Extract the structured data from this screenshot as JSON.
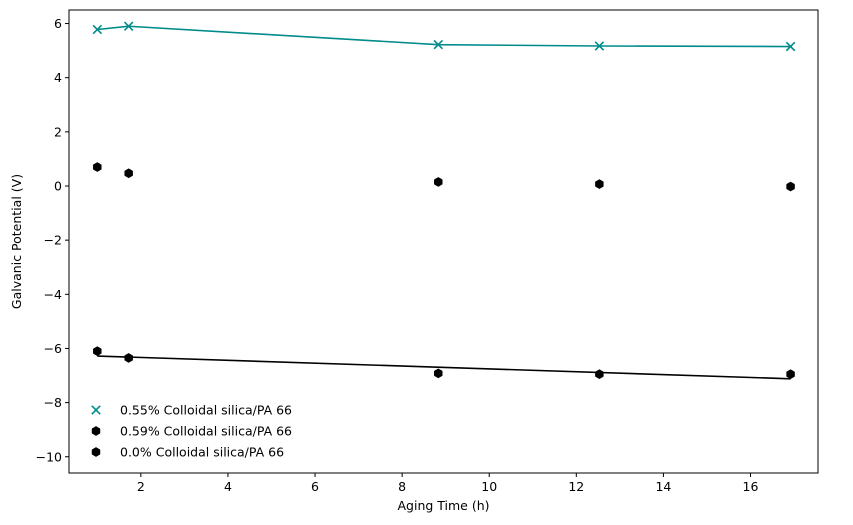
{
  "chart_data": {
    "type": "scatter",
    "xlabel": "Aging Time (h)",
    "ylabel": "Galvanic Potential (V)",
    "xlim": [
      0.35,
      17.55
    ],
    "ylim": [
      -10.6,
      6.5
    ],
    "xticks": [
      2,
      4,
      6,
      8,
      10,
      12,
      14,
      16
    ],
    "yticks": [
      -10,
      -8,
      -6,
      -4,
      -2,
      0,
      2,
      4,
      6
    ],
    "xtick_labels": [
      "2",
      "4",
      "6",
      "8",
      "10",
      "12",
      "14",
      "16"
    ],
    "ytick_labels": [
      "−10",
      "−8",
      "−6",
      "−4",
      "−2",
      "0",
      "2",
      "4",
      "6"
    ],
    "grid": false,
    "legend_position": "lower-left",
    "series": [
      {
        "name": "0.55% Colloidal silica/PA 66",
        "marker": "x",
        "color": "#008B8B",
        "x": [
          1.0,
          1.72,
          8.83,
          12.53,
          16.92
        ],
        "y": [
          5.78,
          5.9,
          5.22,
          5.17,
          5.15
        ]
      },
      {
        "name": "0.59% Colloidal silica/PA 66",
        "marker": "hexagon",
        "color": "#000000",
        "x": [
          1.0,
          1.72,
          8.83,
          12.53,
          16.92
        ],
        "y": [
          0.7,
          0.47,
          0.15,
          0.07,
          -0.02
        ]
      },
      {
        "name": "0.0% Colloidal silica/PA 66",
        "marker": "hexagon",
        "color": "#000000",
        "x": [
          1.0,
          1.72,
          8.83,
          12.53,
          16.92
        ],
        "y": [
          -6.1,
          -6.35,
          -6.92,
          -6.95,
          -6.95
        ]
      }
    ],
    "lines": [
      {
        "color": "#008B8B",
        "x": [
          1.0,
          1.72,
          8.83,
          12.53,
          16.92
        ],
        "y": [
          5.78,
          5.9,
          5.22,
          5.17,
          5.15
        ]
      },
      {
        "color": "#000000",
        "x": [
          1.0,
          16.92
        ],
        "y": [
          -6.28,
          -7.12
        ]
      }
    ]
  }
}
